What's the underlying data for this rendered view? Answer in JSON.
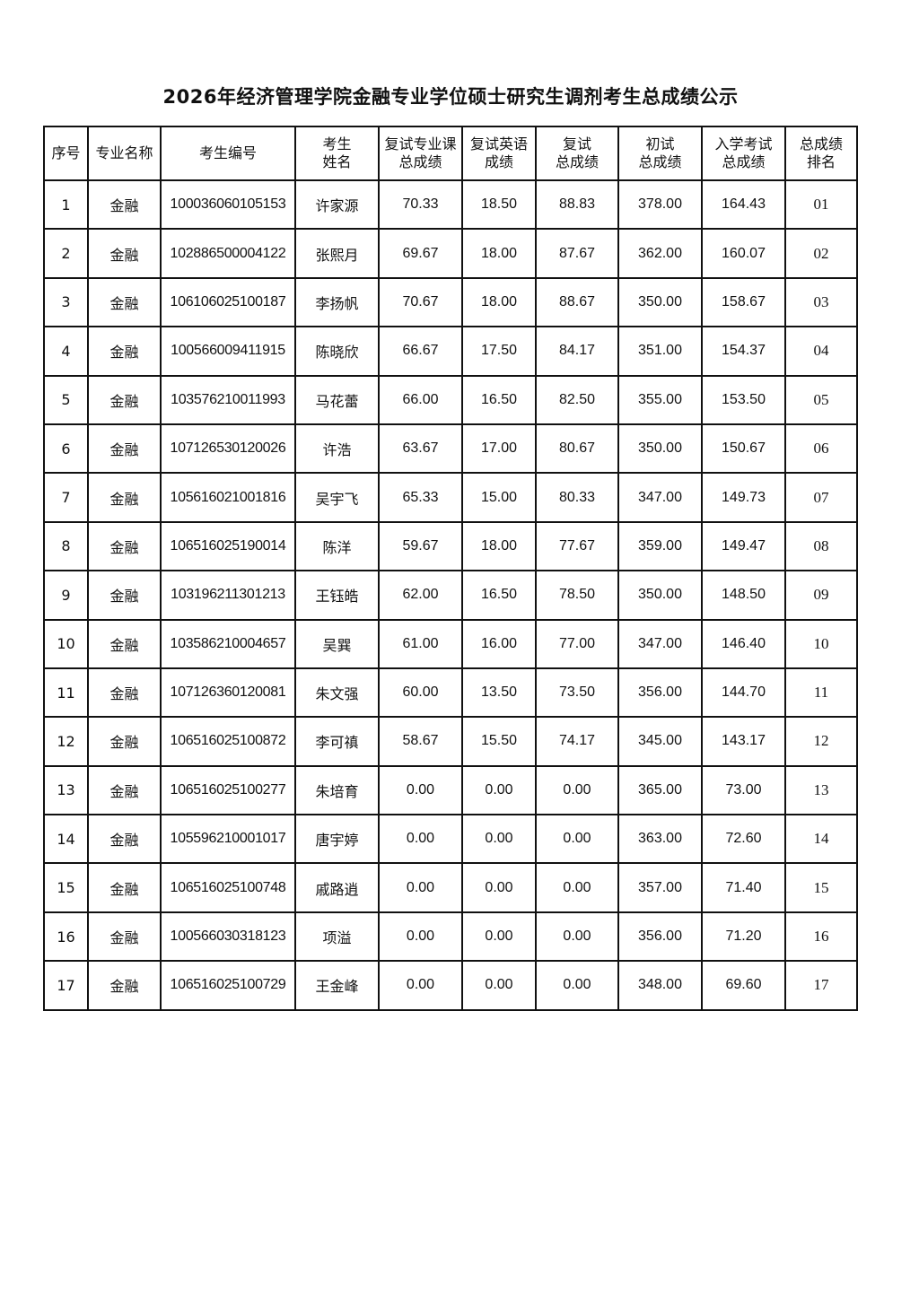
{
  "title": "2026年经济管理学院金融专业学位硕士研究生调剂考生总成绩公示",
  "headers": [
    [
      "序号"
    ],
    [
      "专业名称"
    ],
    [
      "考生编号"
    ],
    [
      "考生",
      "姓名"
    ],
    [
      "复试专业课",
      "总成绩"
    ],
    [
      "复试英语",
      "成绩"
    ],
    [
      "复试",
      "总成绩"
    ],
    [
      "初试",
      "总成绩"
    ],
    [
      "入学考试",
      "总成绩"
    ],
    [
      "总成绩",
      "排名"
    ]
  ],
  "rows": [
    [
      "1",
      "金融",
      "100036060105153",
      "许家源",
      "70.33",
      "18.50",
      "88.83",
      "378.00",
      "164.43",
      "01"
    ],
    [
      "2",
      "金融",
      "102886500004122",
      "张熙月",
      "69.67",
      "18.00",
      "87.67",
      "362.00",
      "160.07",
      "02"
    ],
    [
      "3",
      "金融",
      "106106025100187",
      "李扬帆",
      "70.67",
      "18.00",
      "88.67",
      "350.00",
      "158.67",
      "03"
    ],
    [
      "4",
      "金融",
      "100566009411915",
      "陈晓欣",
      "66.67",
      "17.50",
      "84.17",
      "351.00",
      "154.37",
      "04"
    ],
    [
      "5",
      "金融",
      "103576210011993",
      "马花蕾",
      "66.00",
      "16.50",
      "82.50",
      "355.00",
      "153.50",
      "05"
    ],
    [
      "6",
      "金融",
      "107126530120026",
      "许浩",
      "63.67",
      "17.00",
      "80.67",
      "350.00",
      "150.67",
      "06"
    ],
    [
      "7",
      "金融",
      "105616021001816",
      "吴宇飞",
      "65.33",
      "15.00",
      "80.33",
      "347.00",
      "149.73",
      "07"
    ],
    [
      "8",
      "金融",
      "106516025190014",
      "陈洋",
      "59.67",
      "18.00",
      "77.67",
      "359.00",
      "149.47",
      "08"
    ],
    [
      "9",
      "金融",
      "103196211301213",
      "王钰皓",
      "62.00",
      "16.50",
      "78.50",
      "350.00",
      "148.50",
      "09"
    ],
    [
      "10",
      "金融",
      "103586210004657",
      "吴巽",
      "61.00",
      "16.00",
      "77.00",
      "347.00",
      "146.40",
      "10"
    ],
    [
      "11",
      "金融",
      "107126360120081",
      "朱文强",
      "60.00",
      "13.50",
      "73.50",
      "356.00",
      "144.70",
      "11"
    ],
    [
      "12",
      "金融",
      "106516025100872",
      "李可禛",
      "58.67",
      "15.50",
      "74.17",
      "345.00",
      "143.17",
      "12"
    ],
    [
      "13",
      "金融",
      "106516025100277",
      "朱培育",
      "0.00",
      "0.00",
      "0.00",
      "365.00",
      "73.00",
      "13"
    ],
    [
      "14",
      "金融",
      "105596210001017",
      "唐宇婷",
      "0.00",
      "0.00",
      "0.00",
      "363.00",
      "72.60",
      "14"
    ],
    [
      "15",
      "金融",
      "106516025100748",
      "戚路逍",
      "0.00",
      "0.00",
      "0.00",
      "357.00",
      "71.40",
      "15"
    ],
    [
      "16",
      "金融",
      "100566030318123",
      "项溢",
      "0.00",
      "0.00",
      "0.00",
      "356.00",
      "71.20",
      "16"
    ],
    [
      "17",
      "金融",
      "106516025100729",
      "王金峰",
      "0.00",
      "0.00",
      "0.00",
      "348.00",
      "69.60",
      "17"
    ]
  ]
}
